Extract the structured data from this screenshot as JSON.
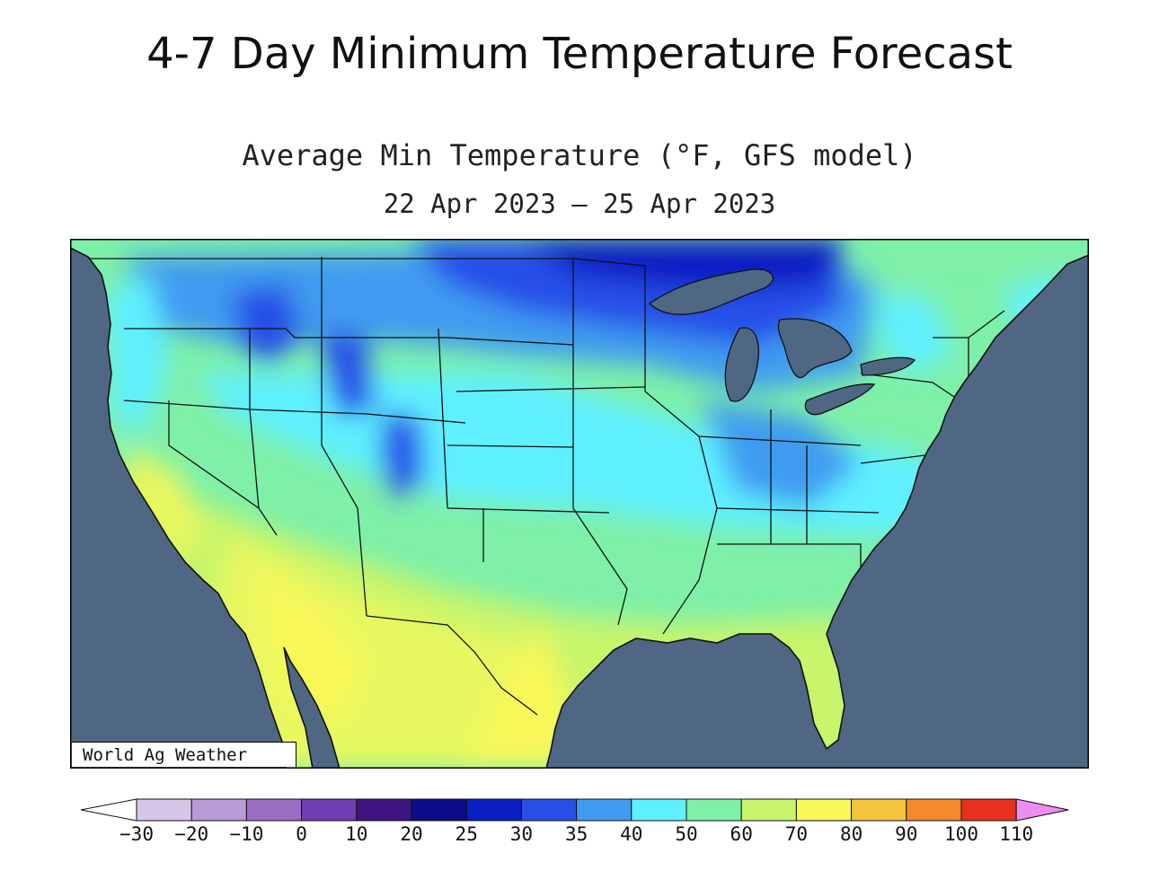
{
  "page_title": "4-7 Day Minimum Temperature Forecast",
  "map": {
    "title": "Average Min Temperature (°F, GFS model)",
    "date_range": "22 Apr 2023 – 25 Apr 2023",
    "credit": "World Ag Weather"
  },
  "colors": {
    "ocean": "#4f6783",
    "lakes": "#4f6783",
    "borders": "#111111"
  },
  "legend": {
    "ticks": [
      "-30",
      "-20",
      "-10",
      "0",
      "10",
      "20",
      "25",
      "30",
      "35",
      "40",
      "50",
      "60",
      "70",
      "80",
      "90",
      "100",
      "110"
    ],
    "colors": [
      "#d8c6e8",
      "#b79ad6",
      "#9a6cc4",
      "#6e3fb0",
      "#3d1480",
      "#0b0d8a",
      "#0a1ec4",
      "#2850e8",
      "#3f9bf0",
      "#5ff0ff",
      "#7ef0a8",
      "#c8f56b",
      "#f8f858",
      "#f4c43c",
      "#f08a2c",
      "#e83020",
      "#e830b8",
      "#ef8cf0"
    ]
  }
}
